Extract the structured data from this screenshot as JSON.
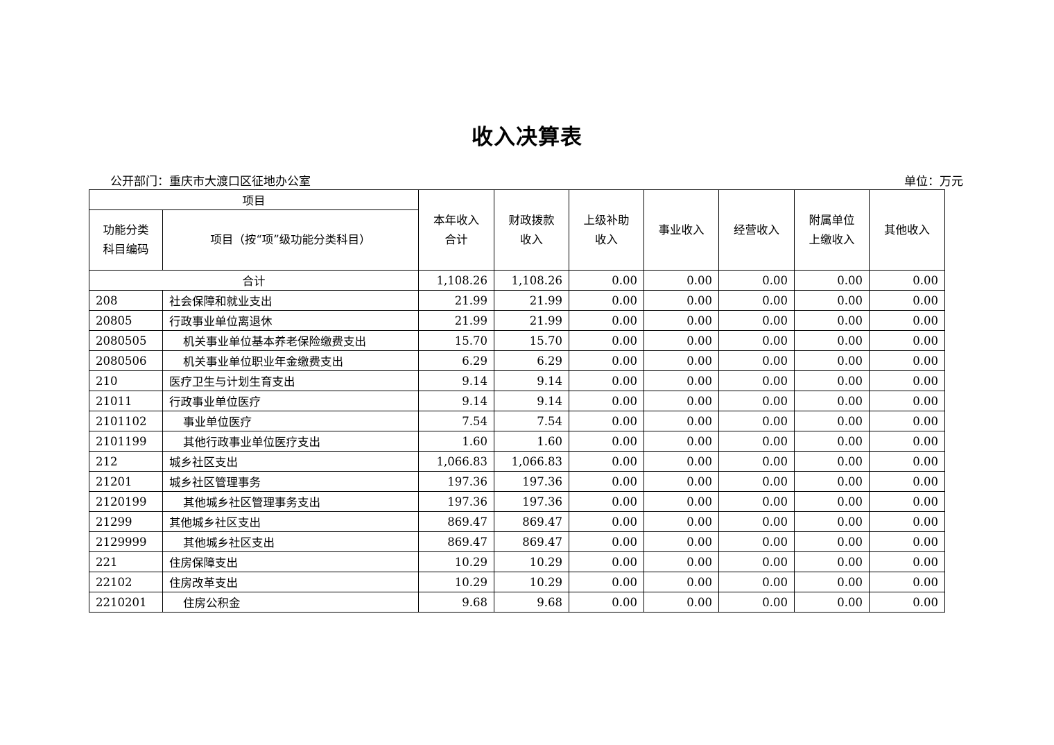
{
  "title": "收入决算表",
  "department": "公开部门：重庆市大渡口区征地办公室",
  "unit": "单位：万元",
  "headers": {
    "project_group": "项目",
    "code_line1": "功能分类",
    "code_line2": "科目编码",
    "name": "项目（按“项”级功能分类科目）",
    "cols": [
      [
        "本年收入",
        "合计"
      ],
      [
        "财政拨款",
        "收入"
      ],
      [
        "上级补助",
        "收入"
      ],
      [
        "事业收入"
      ],
      [
        "经营收入"
      ],
      [
        "附属单位",
        "上缴收入"
      ],
      [
        "其他收入"
      ]
    ]
  },
  "total": {
    "label": "合计",
    "values": [
      "1,108.26",
      "1,108.26",
      "0.00",
      "0.00",
      "0.00",
      "0.00",
      "0.00"
    ]
  },
  "rows": [
    {
      "code": "208",
      "name": "社会保障和就业支出",
      "indent": false,
      "values": [
        "21.99",
        "21.99",
        "0.00",
        "0.00",
        "0.00",
        "0.00",
        "0.00"
      ]
    },
    {
      "code": "20805",
      "name": "行政事业单位离退休",
      "indent": false,
      "values": [
        "21.99",
        "21.99",
        "0.00",
        "0.00",
        "0.00",
        "0.00",
        "0.00"
      ]
    },
    {
      "code": "2080505",
      "name": "机关事业单位基本养老保险缴费支出",
      "indent": true,
      "values": [
        "15.70",
        "15.70",
        "0.00",
        "0.00",
        "0.00",
        "0.00",
        "0.00"
      ]
    },
    {
      "code": "2080506",
      "name": "机关事业单位职业年金缴费支出",
      "indent": true,
      "values": [
        "6.29",
        "6.29",
        "0.00",
        "0.00",
        "0.00",
        "0.00",
        "0.00"
      ]
    },
    {
      "code": "210",
      "name": "医疗卫生与计划生育支出",
      "indent": false,
      "values": [
        "9.14",
        "9.14",
        "0.00",
        "0.00",
        "0.00",
        "0.00",
        "0.00"
      ]
    },
    {
      "code": "21011",
      "name": "行政事业单位医疗",
      "indent": false,
      "values": [
        "9.14",
        "9.14",
        "0.00",
        "0.00",
        "0.00",
        "0.00",
        "0.00"
      ]
    },
    {
      "code": "2101102",
      "name": "事业单位医疗",
      "indent": true,
      "values": [
        "7.54",
        "7.54",
        "0.00",
        "0.00",
        "0.00",
        "0.00",
        "0.00"
      ]
    },
    {
      "code": "2101199",
      "name": "其他行政事业单位医疗支出",
      "indent": true,
      "values": [
        "1.60",
        "1.60",
        "0.00",
        "0.00",
        "0.00",
        "0.00",
        "0.00"
      ]
    },
    {
      "code": "212",
      "name": "城乡社区支出",
      "indent": false,
      "values": [
        "1,066.83",
        "1,066.83",
        "0.00",
        "0.00",
        "0.00",
        "0.00",
        "0.00"
      ]
    },
    {
      "code": "21201",
      "name": "城乡社区管理事务",
      "indent": false,
      "values": [
        "197.36",
        "197.36",
        "0.00",
        "0.00",
        "0.00",
        "0.00",
        "0.00"
      ]
    },
    {
      "code": "2120199",
      "name": "其他城乡社区管理事务支出",
      "indent": true,
      "values": [
        "197.36",
        "197.36",
        "0.00",
        "0.00",
        "0.00",
        "0.00",
        "0.00"
      ]
    },
    {
      "code": "21299",
      "name": "其他城乡社区支出",
      "indent": false,
      "values": [
        "869.47",
        "869.47",
        "0.00",
        "0.00",
        "0.00",
        "0.00",
        "0.00"
      ]
    },
    {
      "code": "2129999",
      "name": "其他城乡社区支出",
      "indent": true,
      "values": [
        "869.47",
        "869.47",
        "0.00",
        "0.00",
        "0.00",
        "0.00",
        "0.00"
      ]
    },
    {
      "code": "221",
      "name": "住房保障支出",
      "indent": false,
      "values": [
        "10.29",
        "10.29",
        "0.00",
        "0.00",
        "0.00",
        "0.00",
        "0.00"
      ]
    },
    {
      "code": "22102",
      "name": "住房改革支出",
      "indent": false,
      "values": [
        "10.29",
        "10.29",
        "0.00",
        "0.00",
        "0.00",
        "0.00",
        "0.00"
      ]
    },
    {
      "code": "2210201",
      "name": "住房公积金",
      "indent": true,
      "values": [
        "9.68",
        "9.68",
        "0.00",
        "0.00",
        "0.00",
        "0.00",
        "0.00"
      ]
    }
  ]
}
